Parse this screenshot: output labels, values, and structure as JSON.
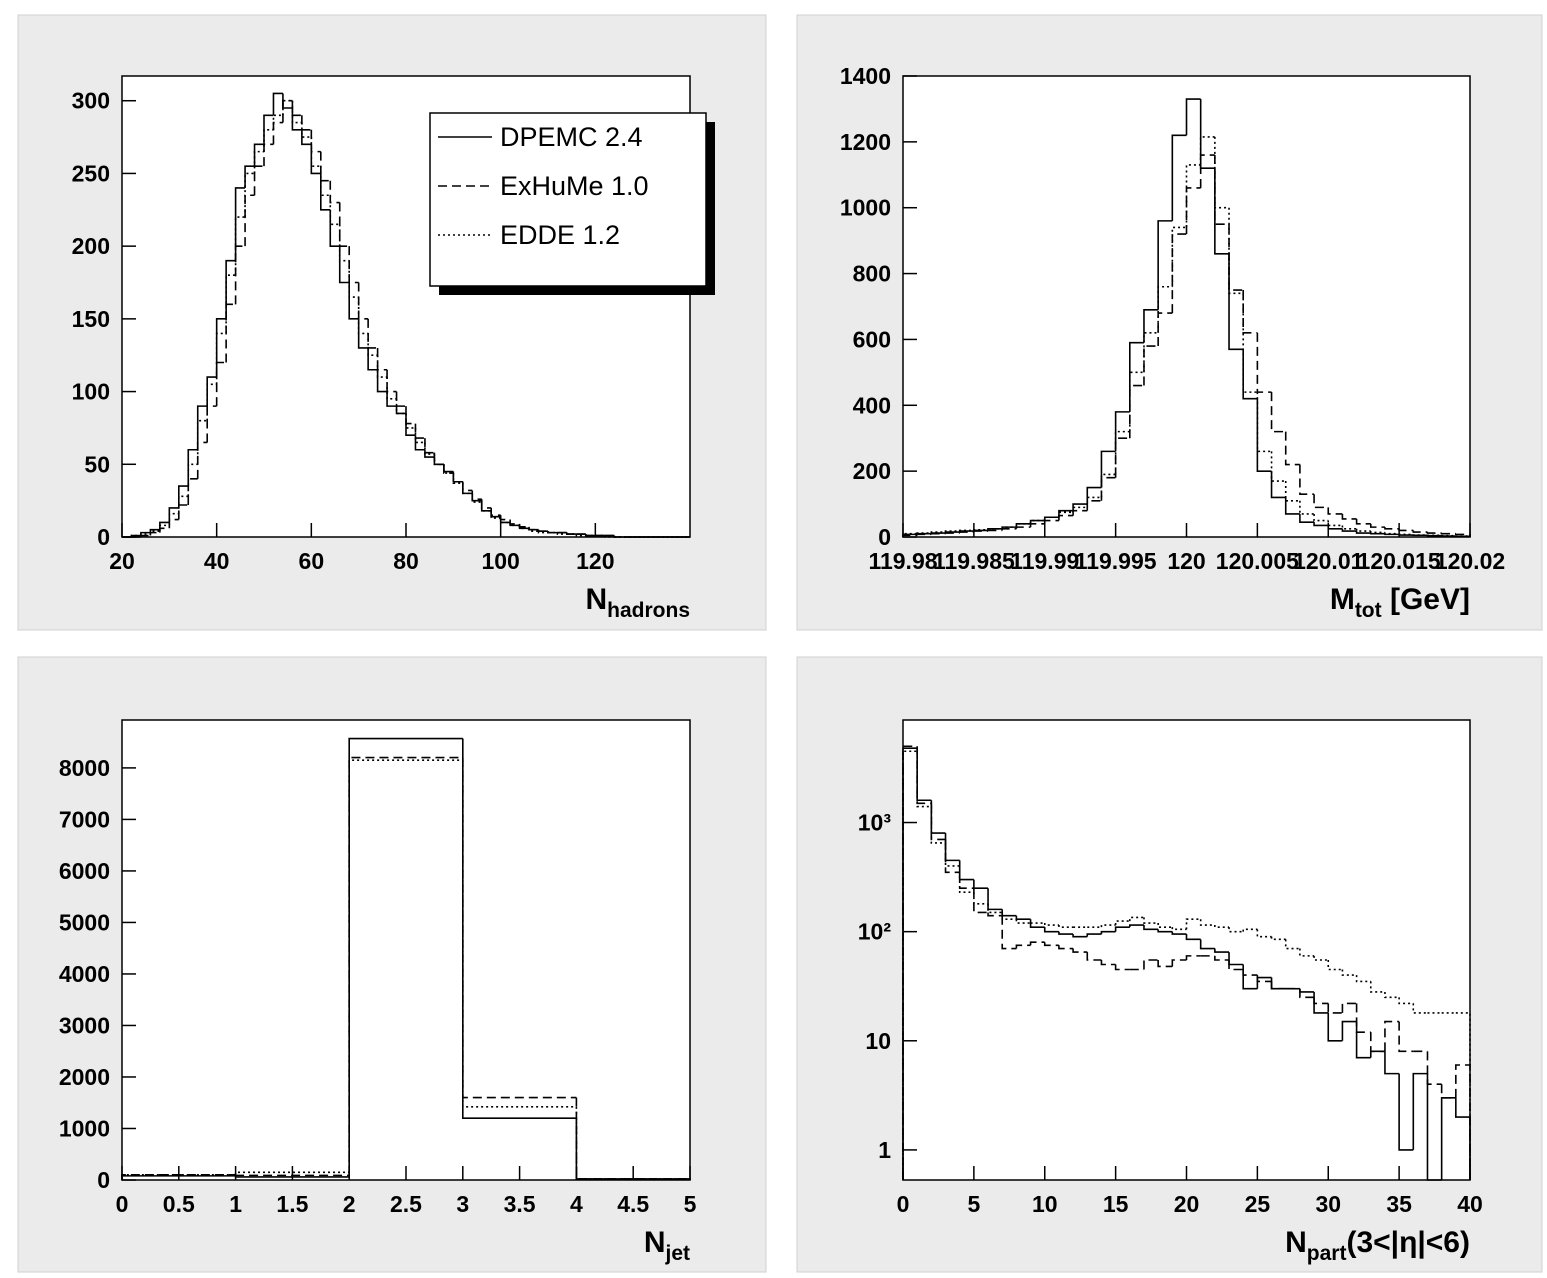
{
  "chart_data": [
    {
      "type": "histogram",
      "xlabel": {
        "text": "N",
        "sub": "hadrons"
      },
      "bins": [
        20,
        22,
        24,
        26,
        28,
        30,
        32,
        34,
        36,
        38,
        40,
        42,
        44,
        46,
        48,
        50,
        52,
        54,
        56,
        58,
        60,
        62,
        64,
        66,
        68,
        70,
        72,
        74,
        76,
        78,
        80,
        82,
        84,
        86,
        88,
        90,
        92,
        94,
        96,
        98,
        100,
        102,
        104,
        106,
        108,
        110,
        112,
        114,
        116,
        118,
        120,
        122,
        124,
        126,
        128,
        130,
        132,
        134,
        136,
        138,
        140
      ],
      "series": [
        {
          "name": "DPEMC 2.4",
          "color": "#000000",
          "style": "solid",
          "values": [
            0,
            1,
            3,
            5,
            10,
            20,
            35,
            60,
            90,
            110,
            150,
            190,
            240,
            255,
            270,
            290,
            305,
            295,
            280,
            270,
            250,
            225,
            200,
            175,
            150,
            130,
            115,
            100,
            90,
            85,
            70,
            60,
            55,
            50,
            45,
            38,
            30,
            25,
            18,
            14,
            10,
            8,
            6,
            5,
            4,
            3,
            3,
            2,
            2,
            1,
            1,
            1,
            0,
            0,
            0,
            0,
            0,
            0,
            0,
            0
          ]
        },
        {
          "name": "ExHuMe 1.0",
          "color": "#000000",
          "style": "dashed",
          "values": [
            0,
            0,
            1,
            3,
            6,
            12,
            22,
            40,
            65,
            90,
            120,
            160,
            200,
            235,
            255,
            270,
            285,
            300,
            290,
            280,
            265,
            245,
            230,
            200,
            175,
            150,
            130,
            115,
            100,
            90,
            78,
            68,
            58,
            50,
            44,
            38,
            32,
            26,
            20,
            15,
            12,
            9,
            7,
            5,
            4,
            3,
            3,
            2,
            2,
            1,
            1,
            1,
            0,
            0,
            0,
            0,
            0,
            0,
            0,
            0
          ]
        },
        {
          "name": "EDDE 1.2",
          "color": "#000000",
          "style": "dotted",
          "values": [
            0,
            1,
            2,
            4,
            8,
            16,
            28,
            50,
            80,
            105,
            140,
            180,
            220,
            250,
            265,
            280,
            290,
            300,
            285,
            275,
            255,
            235,
            215,
            190,
            165,
            140,
            125,
            110,
            95,
            85,
            75,
            65,
            57,
            50,
            44,
            37,
            30,
            24,
            18,
            13,
            10,
            8,
            6,
            4,
            3,
            3,
            2,
            2,
            1,
            1,
            1,
            0,
            0,
            0,
            0,
            0,
            0,
            0,
            0,
            0
          ]
        }
      ],
      "xlim": [
        20,
        140
      ],
      "xticks": [
        20,
        40,
        60,
        80,
        100,
        120
      ],
      "ylim": [
        0,
        317
      ],
      "yticks": [
        0,
        50,
        100,
        150,
        200,
        250,
        300
      ],
      "legend": "top-right"
    },
    {
      "type": "histogram",
      "xlabel": {
        "text": "M",
        "sub": "tot",
        "suffix": " [GeV]"
      },
      "bins": [
        119.98,
        119.981,
        119.982,
        119.983,
        119.984,
        119.985,
        119.986,
        119.987,
        119.988,
        119.989,
        119.99,
        119.991,
        119.992,
        119.993,
        119.994,
        119.995,
        119.996,
        119.997,
        119.998,
        119.999,
        120,
        120.001,
        120.002,
        120.003,
        120.004,
        120.005,
        120.006,
        120.007,
        120.008,
        120.009,
        120.01,
        120.011,
        120.012,
        120.013,
        120.014,
        120.015,
        120.016,
        120.017,
        120.018,
        120.019,
        120.02
      ],
      "series": [
        {
          "color": "#000000",
          "style": "solid",
          "values": [
            8,
            10,
            12,
            15,
            18,
            20,
            25,
            30,
            40,
            50,
            60,
            80,
            100,
            150,
            260,
            380,
            590,
            690,
            960,
            1220,
            1330,
            1120,
            860,
            570,
            420,
            200,
            120,
            70,
            45,
            35,
            25,
            18,
            12,
            10,
            8,
            6,
            5,
            4,
            3,
            2
          ]
        },
        {
          "color": "#000000",
          "style": "dashed",
          "values": [
            5,
            8,
            10,
            12,
            15,
            18,
            20,
            25,
            30,
            40,
            50,
            65,
            80,
            110,
            180,
            300,
            460,
            580,
            680,
            920,
            1060,
            1160,
            950,
            750,
            620,
            440,
            320,
            220,
            130,
            90,
            70,
            55,
            40,
            30,
            25,
            20,
            15,
            12,
            10,
            8
          ]
        },
        {
          "color": "#000000",
          "style": "dotted",
          "values": [
            10,
            12,
            15,
            18,
            20,
            22,
            25,
            30,
            40,
            50,
            60,
            75,
            90,
            120,
            190,
            320,
            500,
            620,
            760,
            940,
            1130,
            1215,
            1000,
            740,
            440,
            260,
            170,
            110,
            70,
            50,
            35,
            25,
            18,
            14,
            10,
            8,
            6,
            5,
            4,
            3
          ]
        }
      ],
      "xlim": [
        119.98,
        120.02
      ],
      "xticks": [
        119.98,
        119.985,
        119.99,
        119.995,
        120,
        120.005,
        120.01,
        120.015,
        120.02
      ],
      "ylim": [
        0,
        1400
      ],
      "yticks": [
        0,
        200,
        400,
        600,
        800,
        1000,
        1200,
        1400
      ]
    },
    {
      "type": "histogram",
      "xlabel": {
        "text": "N",
        "sub": "jet"
      },
      "bins": [
        0,
        1,
        2,
        3,
        4,
        5
      ],
      "series": [
        {
          "color": "#000000",
          "style": "solid",
          "values": [
            80,
            60,
            8570,
            1200,
            20
          ]
        },
        {
          "color": "#000000",
          "style": "dashed",
          "values": [
            100,
            90,
            8200,
            1600,
            20
          ]
        },
        {
          "color": "#000000",
          "style": "dotted",
          "values": [
            100,
            150,
            8150,
            1420,
            20
          ]
        }
      ],
      "xlim": [
        0,
        5
      ],
      "xticks": [
        0,
        0.5,
        1,
        1.5,
        2,
        2.5,
        3,
        3.5,
        4,
        4.5,
        5
      ],
      "ylim": [
        0,
        8930
      ],
      "yticks": [
        0,
        1000,
        2000,
        3000,
        4000,
        5000,
        6000,
        7000,
        8000
      ]
    },
    {
      "type": "histogram",
      "xlabel": {
        "text": "N",
        "sub": "part",
        "suffix": "(3<|η|<6)"
      },
      "bins": [
        0,
        1,
        2,
        3,
        4,
        5,
        6,
        7,
        8,
        9,
        10,
        11,
        12,
        13,
        14,
        15,
        16,
        17,
        18,
        19,
        20,
        21,
        22,
        23,
        24,
        25,
        26,
        27,
        28,
        29,
        30,
        31,
        32,
        33,
        34,
        35,
        36,
        37,
        38,
        39,
        40
      ],
      "series": [
        {
          "color": "#000000",
          "style": "solid",
          "values": [
            4800,
            1600,
            800,
            450,
            300,
            250,
            160,
            140,
            130,
            110,
            100,
            95,
            90,
            95,
            100,
            110,
            115,
            105,
            100,
            95,
            85,
            70,
            65,
            50,
            30,
            38,
            30,
            30,
            28,
            18,
            10,
            15,
            7,
            8,
            5,
            1,
            5,
            0,
            3,
            2
          ]
        },
        {
          "color": "#000000",
          "style": "dashed",
          "values": [
            5000,
            1500,
            700,
            350,
            250,
            150,
            140,
            70,
            75,
            80,
            75,
            70,
            65,
            55,
            50,
            45,
            45,
            55,
            48,
            55,
            60,
            60,
            55,
            45,
            40,
            35,
            30,
            30,
            25,
            22,
            18,
            22,
            12,
            8,
            15,
            8,
            8,
            4,
            3,
            6
          ]
        },
        {
          "color": "#000000",
          "style": "dotted",
          "values": [
            4500,
            1400,
            650,
            400,
            230,
            180,
            150,
            130,
            120,
            120,
            115,
            110,
            110,
            110,
            115,
            125,
            135,
            120,
            110,
            105,
            130,
            115,
            110,
            100,
            105,
            90,
            85,
            70,
            60,
            55,
            45,
            40,
            35,
            28,
            25,
            22,
            18,
            18,
            18,
            18
          ]
        }
      ],
      "xlim": [
        0,
        40
      ],
      "xticks": [
        0,
        5,
        10,
        15,
        20,
        25,
        30,
        35,
        40
      ],
      "ylim": [
        0.53,
        8700
      ],
      "log": true,
      "yticks": [
        1,
        10,
        {
          "value": 100,
          "label": "10²"
        },
        {
          "value": 1000,
          "label": "10³"
        }
      ]
    }
  ]
}
